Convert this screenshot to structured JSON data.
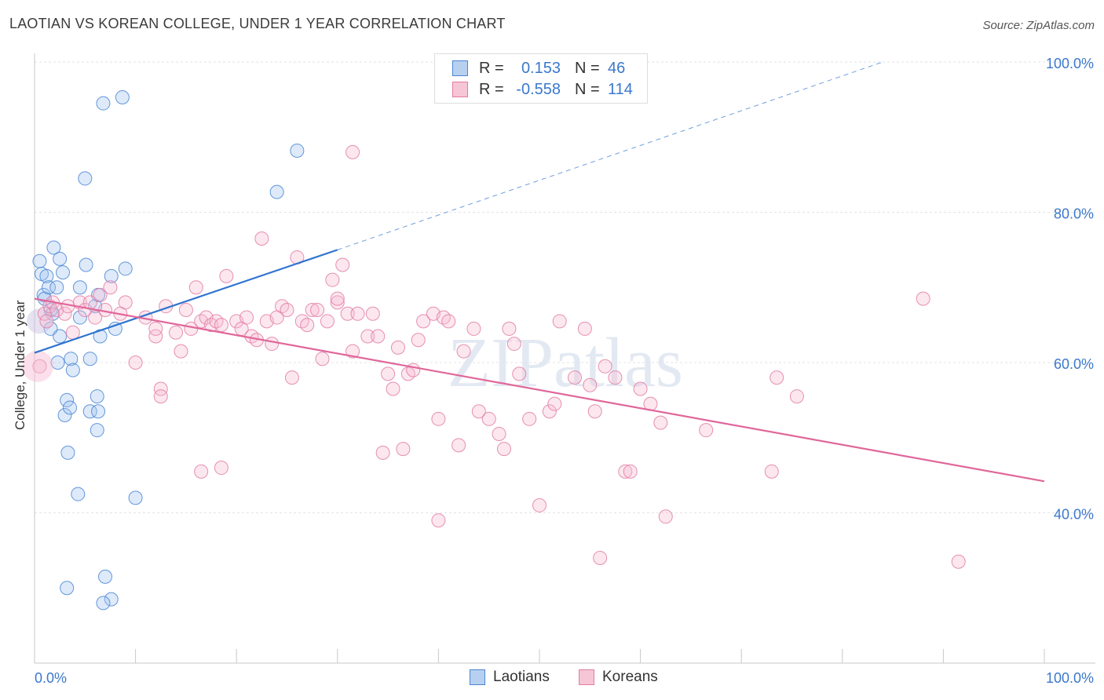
{
  "title": "LAOTIAN VS KOREAN COLLEGE, UNDER 1 YEAR CORRELATION CHART",
  "source": "Source: ZipAtlas.com",
  "watermark": "ZIPatlas",
  "legend": {
    "r_label": "R =",
    "n_label": "N =",
    "rows": [
      {
        "name": "Laotians",
        "r": "0.153",
        "n": "46",
        "color": "#4a86d4",
        "fill": "#b8d0f0"
      },
      {
        "name": "Koreans",
        "r": "-0.558",
        "n": "114",
        "color": "#e27ca3",
        "fill": "#f6c5d6"
      }
    ]
  },
  "chart_data": {
    "type": "scatter",
    "title": "LAOTIAN VS KOREAN COLLEGE, UNDER 1 YEAR CORRELATION CHART",
    "xlabel": "",
    "ylabel": "College, Under 1 year",
    "xlim": [
      0,
      100
    ],
    "ylim": [
      20,
      100
    ],
    "x_tick_labels": [
      "0.0%",
      "100.0%"
    ],
    "y_ticks": [
      40,
      60,
      80,
      100
    ],
    "y_tick_labels": [
      "40.0%",
      "60.0%",
      "80.0%",
      "100.0%"
    ],
    "grid": true,
    "legend_position": "bottom",
    "series": [
      {
        "name": "Laotians",
        "color": "#4a86d4",
        "trend": {
          "x0": 0,
          "y0": 61.3,
          "x1": 30,
          "y1": 75.0,
          "dashed_to_x": 84,
          "dashed_to_y": 100
        },
        "points": [
          [
            0.5,
            73.5
          ],
          [
            0.7,
            71.8
          ],
          [
            0.9,
            69.0
          ],
          [
            1.0,
            68.5
          ],
          [
            1.2,
            71.5
          ],
          [
            1.4,
            70.0
          ],
          [
            1.6,
            67.0
          ],
          [
            1.8,
            66.5
          ],
          [
            1.6,
            64.5
          ],
          [
            1.9,
            75.3
          ],
          [
            2.2,
            70.0
          ],
          [
            2.5,
            63.5
          ],
          [
            2.3,
            60.0
          ],
          [
            2.5,
            73.8
          ],
          [
            2.8,
            72.0
          ],
          [
            3.0,
            53.0
          ],
          [
            3.2,
            55.0
          ],
          [
            3.5,
            54.0
          ],
          [
            3.3,
            48.0
          ],
          [
            3.6,
            60.5
          ],
          [
            3.8,
            59.0
          ],
          [
            4.3,
            42.5
          ],
          [
            4.5,
            66.0
          ],
          [
            4.5,
            70.0
          ],
          [
            5.0,
            84.5
          ],
          [
            5.1,
            73.0
          ],
          [
            5.5,
            60.5
          ],
          [
            5.5,
            53.5
          ],
          [
            6.2,
            55.5
          ],
          [
            6.3,
            53.5
          ],
          [
            6.2,
            51.0
          ],
          [
            6.0,
            67.5
          ],
          [
            6.3,
            69.0
          ],
          [
            6.5,
            63.5
          ],
          [
            7.6,
            71.5
          ],
          [
            8.0,
            64.5
          ],
          [
            6.8,
            94.5
          ],
          [
            8.7,
            95.3
          ],
          [
            9.0,
            72.5
          ],
          [
            10.0,
            42.0
          ],
          [
            7.0,
            31.5
          ],
          [
            7.6,
            28.5
          ],
          [
            6.8,
            28.0
          ],
          [
            3.2,
            30.0
          ],
          [
            24.0,
            82.7
          ],
          [
            26.0,
            88.2
          ]
        ]
      },
      {
        "name": "Koreans",
        "color": "#e27ca3",
        "trend": {
          "x0": 0,
          "y0": 68.5,
          "x1": 100,
          "y1": 44.2
        },
        "points": [
          [
            0.5,
            59.5
          ],
          [
            1.0,
            66.5
          ],
          [
            1.2,
            65.5
          ],
          [
            1.5,
            67.5
          ],
          [
            1.8,
            68.0
          ],
          [
            2.2,
            67.0
          ],
          [
            3.0,
            66.5
          ],
          [
            3.3,
            67.5
          ],
          [
            3.8,
            64.0
          ],
          [
            4.5,
            68.0
          ],
          [
            5.0,
            67.0
          ],
          [
            5.5,
            68.0
          ],
          [
            6.0,
            66.0
          ],
          [
            6.5,
            69.0
          ],
          [
            7.0,
            67.0
          ],
          [
            7.5,
            70.0
          ],
          [
            8.5,
            66.5
          ],
          [
            9.0,
            68.0
          ],
          [
            10.0,
            60.0
          ],
          [
            11.0,
            66.0
          ],
          [
            12.0,
            63.5
          ],
          [
            12.0,
            64.5
          ],
          [
            12.5,
            56.5
          ],
          [
            12.5,
            55.5
          ],
          [
            13.0,
            67.5
          ],
          [
            14.0,
            64.0
          ],
          [
            14.5,
            61.5
          ],
          [
            15.0,
            67.0
          ],
          [
            15.5,
            64.5
          ],
          [
            16.0,
            70.0
          ],
          [
            16.5,
            65.5
          ],
          [
            17.0,
            66.0
          ],
          [
            17.5,
            65.0
          ],
          [
            18.0,
            65.5
          ],
          [
            18.5,
            65.0
          ],
          [
            19.0,
            71.5
          ],
          [
            20.0,
            65.5
          ],
          [
            20.5,
            64.5
          ],
          [
            21.0,
            66.0
          ],
          [
            21.5,
            63.5
          ],
          [
            22.0,
            63.0
          ],
          [
            22.5,
            76.5
          ],
          [
            23.0,
            65.5
          ],
          [
            23.5,
            62.5
          ],
          [
            24.0,
            66.0
          ],
          [
            24.5,
            67.5
          ],
          [
            25.0,
            67.0
          ],
          [
            25.5,
            58.0
          ],
          [
            26.0,
            74.0
          ],
          [
            26.5,
            65.5
          ],
          [
            27.0,
            65.0
          ],
          [
            27.5,
            67.0
          ],
          [
            28.0,
            67.0
          ],
          [
            28.5,
            60.5
          ],
          [
            29.0,
            65.5
          ],
          [
            29.5,
            71.0
          ],
          [
            30.0,
            68.0
          ],
          [
            30.5,
            73.0
          ],
          [
            31.0,
            66.5
          ],
          [
            31.5,
            61.5
          ],
          [
            32.0,
            66.5
          ],
          [
            33.0,
            63.5
          ],
          [
            31.5,
            88.0
          ],
          [
            33.5,
            66.5
          ],
          [
            34.0,
            63.5
          ],
          [
            34.5,
            48.0
          ],
          [
            35.0,
            58.5
          ],
          [
            35.5,
            56.5
          ],
          [
            36.0,
            62.0
          ],
          [
            36.5,
            48.5
          ],
          [
            37.0,
            58.5
          ],
          [
            37.5,
            59.0
          ],
          [
            38.0,
            63.0
          ],
          [
            38.5,
            65.5
          ],
          [
            39.5,
            66.5
          ],
          [
            40.0,
            52.5
          ],
          [
            40.5,
            66.0
          ],
          [
            41.0,
            65.5
          ],
          [
            40.0,
            39.0
          ],
          [
            42.0,
            49.0
          ],
          [
            42.5,
            61.5
          ],
          [
            43.5,
            64.5
          ],
          [
            44.0,
            53.5
          ],
          [
            45.0,
            52.5
          ],
          [
            46.0,
            50.5
          ],
          [
            46.5,
            48.5
          ],
          [
            47.0,
            64.5
          ],
          [
            47.5,
            62.5
          ],
          [
            48.0,
            58.5
          ],
          [
            49.0,
            52.5
          ],
          [
            50.0,
            41.0
          ],
          [
            51.0,
            53.5
          ],
          [
            51.5,
            54.5
          ],
          [
            52.0,
            65.5
          ],
          [
            53.5,
            58.0
          ],
          [
            54.5,
            64.5
          ],
          [
            55.0,
            57.0
          ],
          [
            55.5,
            53.5
          ],
          [
            56.0,
            34.0
          ],
          [
            56.5,
            59.5
          ],
          [
            57.5,
            58.0
          ],
          [
            58.5,
            45.5
          ],
          [
            59.0,
            45.5
          ],
          [
            60.0,
            56.5
          ],
          [
            61.0,
            54.5
          ],
          [
            62.0,
            52.0
          ],
          [
            62.5,
            39.5
          ],
          [
            66.5,
            51.0
          ],
          [
            73.0,
            45.5
          ],
          [
            73.5,
            58.0
          ],
          [
            75.5,
            55.5
          ],
          [
            88.0,
            68.5
          ],
          [
            91.5,
            33.5
          ],
          [
            18.5,
            46.0
          ],
          [
            16.5,
            45.5
          ],
          [
            30.0,
            68.5
          ]
        ]
      }
    ]
  }
}
